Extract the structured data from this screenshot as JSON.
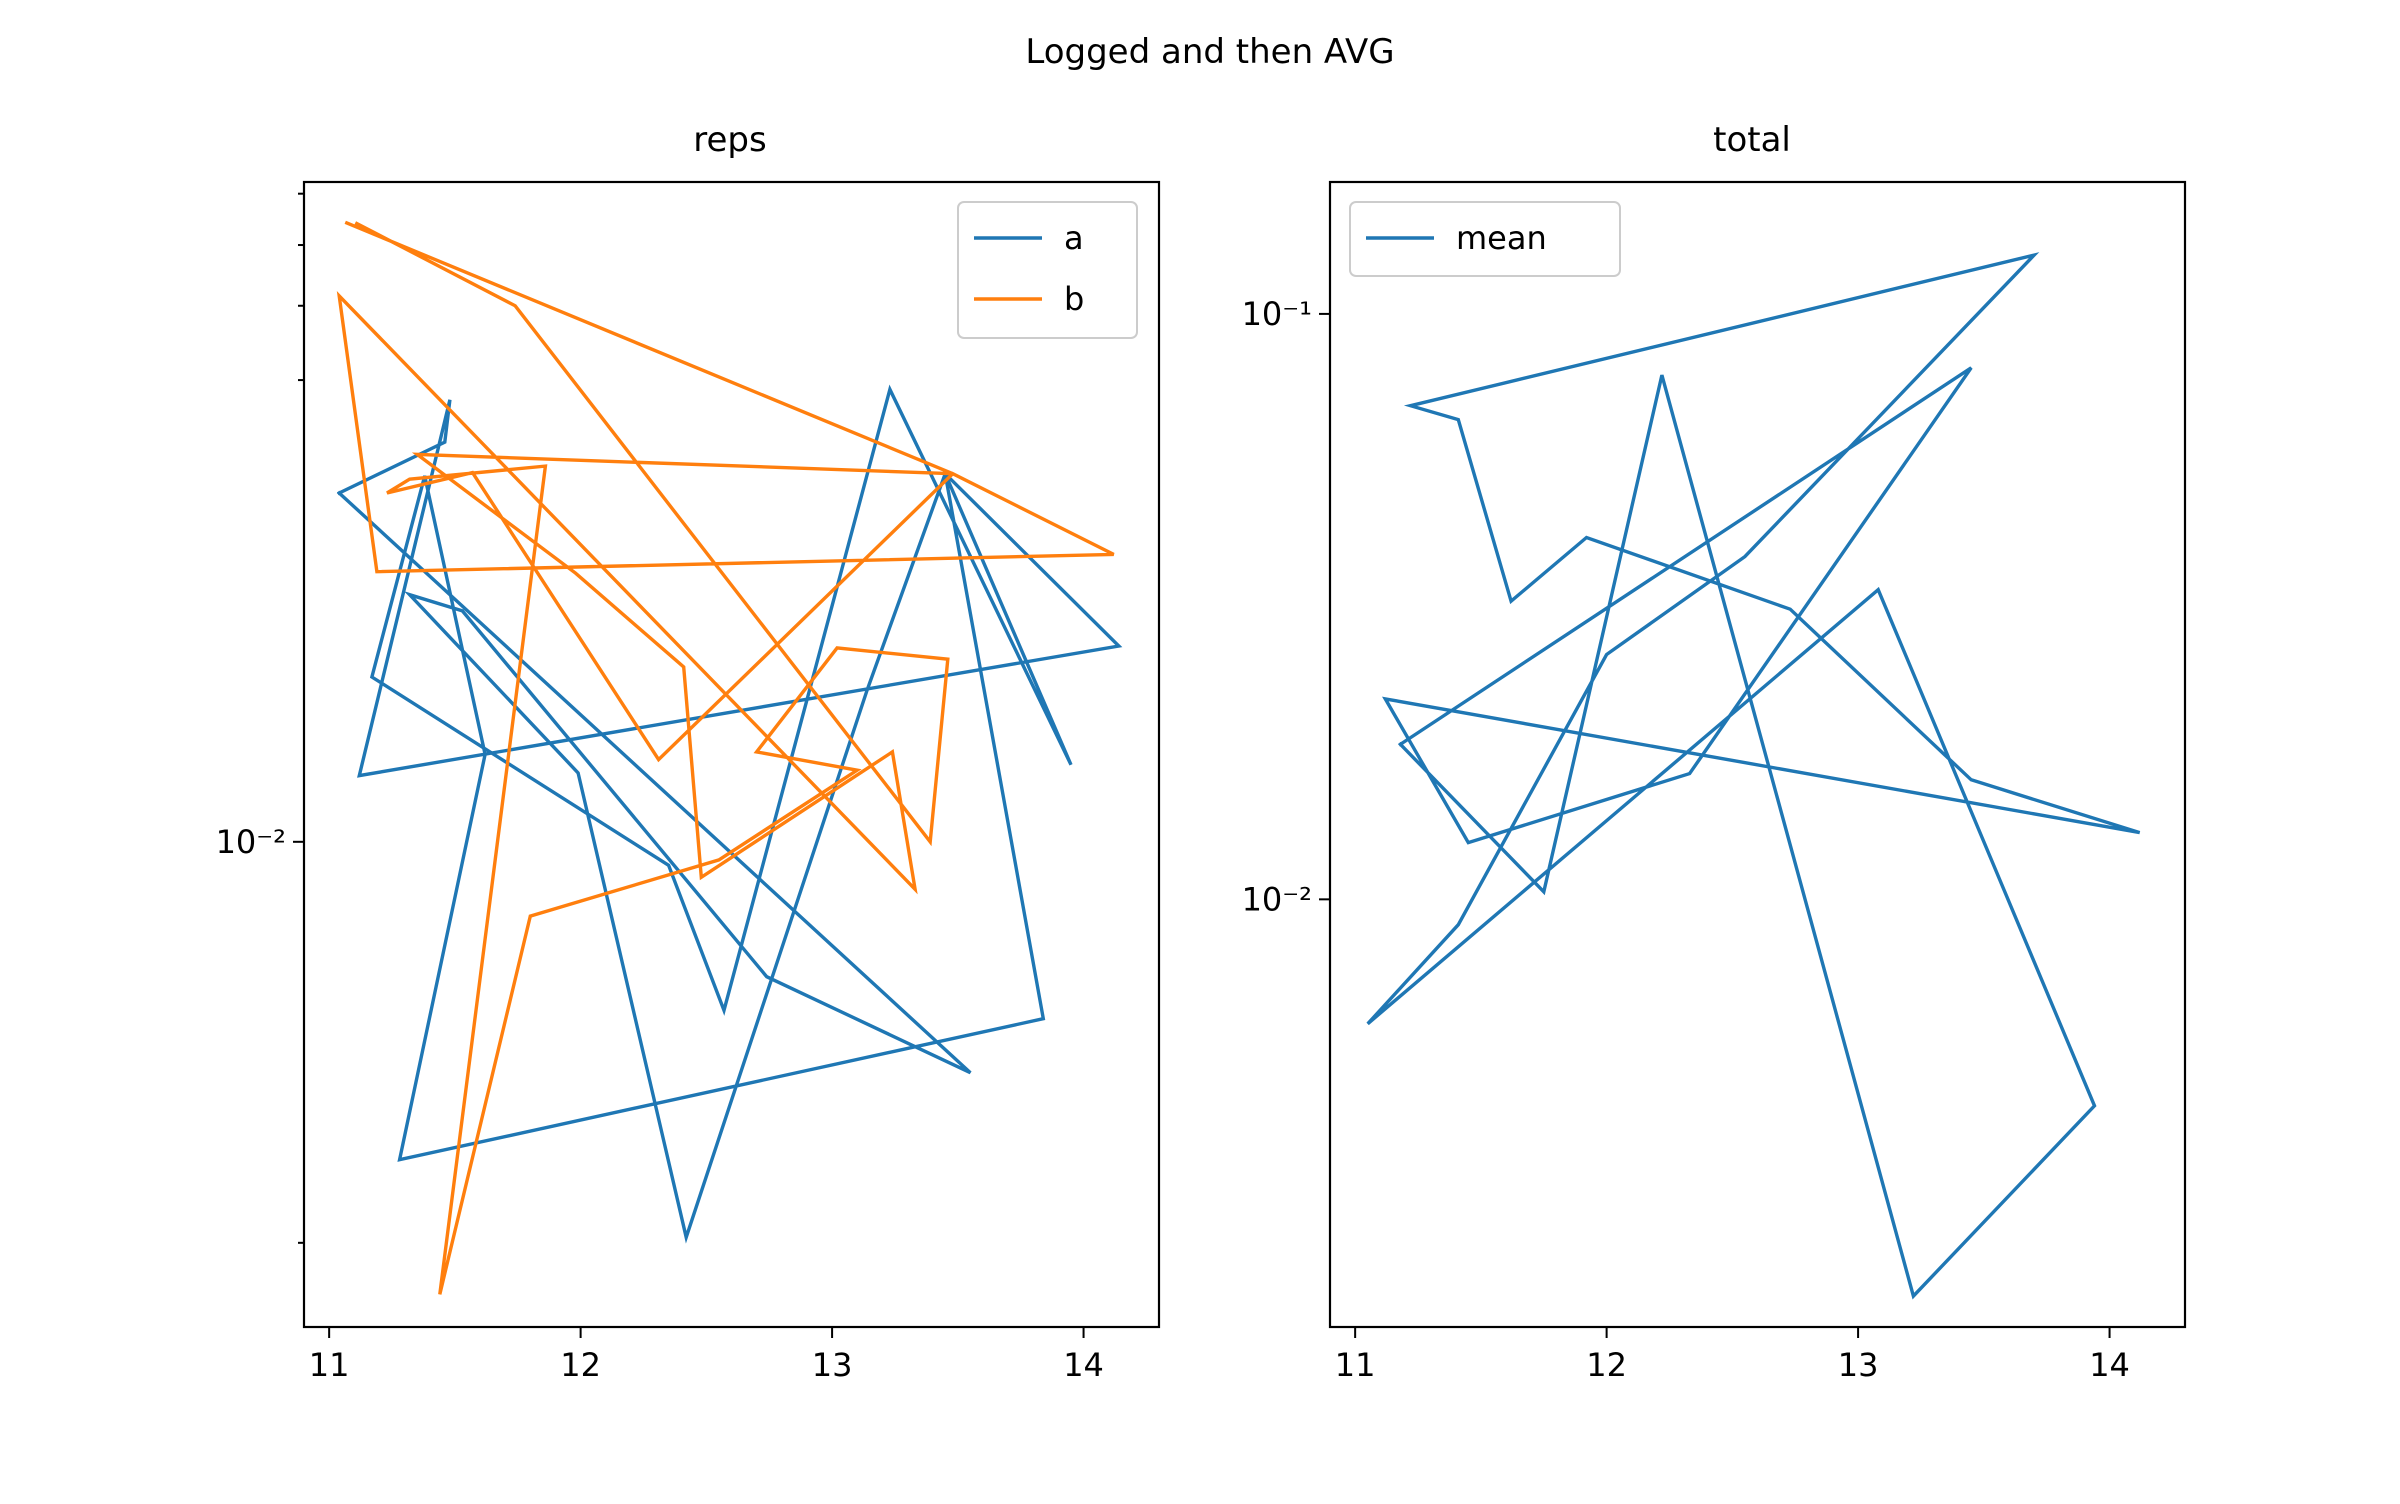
{
  "figure": {
    "title": "Logged and then AVG"
  },
  "colors": {
    "a": "#1f77b4",
    "b": "#ff7f0e",
    "mean": "#1f77b4"
  },
  "chart_data": [
    {
      "type": "line",
      "title": "reps",
      "xlabel": "",
      "ylabel": "",
      "yscale": "log",
      "xlim": [
        10.9,
        14.3
      ],
      "ylim": [
        0.00233,
        0.0725
      ],
      "xticks": [
        11,
        12,
        13,
        14
      ],
      "xtick_labels": [
        "11",
        "12",
        "13",
        "14"
      ],
      "yticks_major": [
        0.01
      ],
      "ytick_labels": [
        "10⁻²"
      ],
      "yticks_minor": [
        0.003,
        0.04,
        0.05,
        0.06,
        0.07
      ],
      "grid": false,
      "legend_position": "top-right",
      "series": [
        {
          "name": "a",
          "color": "#1f77b4",
          "x": [
            11.04,
            11.46,
            11.48,
            11.12,
            14.14,
            13.45,
            13.84,
            11.28,
            11.62,
            11.38,
            11.17,
            12.35,
            12.57,
            13.23,
            13.95,
            13.45,
            13.14,
            12.42,
            11.99,
            11.32,
            11.53,
            12.74,
            13.55,
            11.04
          ],
          "y": [
            0.0285,
            0.0332,
            0.0377,
            0.0122,
            0.018,
            0.0302,
            0.00588,
            0.00385,
            0.013,
            0.03,
            0.0164,
            0.00932,
            0.00603,
            0.0389,
            0.0126,
            0.0302,
            0.0158,
            0.00305,
            0.0123,
            0.021,
            0.02,
            0.00667,
            0.005,
            0.0285
          ]
        },
        {
          "name": "b",
          "color": "#ff7f0e",
          "x": [
            11.07,
            13.48,
            11.35,
            11.98,
            12.41,
            12.48,
            13.24,
            13.33,
            11.04,
            11.19,
            14.12,
            13.48,
            12.31,
            11.57,
            11.23,
            11.32,
            11.86,
            11.44,
            11.8,
            12.55,
            13.1,
            12.7,
            13.02,
            13.46,
            13.39,
            11.74,
            11.11
          ],
          "y": [
            0.0641,
            0.0302,
            0.032,
            0.0224,
            0.0169,
            0.00899,
            0.0131,
            0.00867,
            0.0515,
            0.0225,
            0.0237,
            0.0302,
            0.0128,
            0.0303,
            0.0285,
            0.0297,
            0.0309,
            0.00257,
            0.008,
            0.00947,
            0.0124,
            0.0131,
            0.0179,
            0.0173,
            0.01,
            0.05,
            0.064
          ]
        }
      ]
    },
    {
      "type": "line",
      "title": "total",
      "xlabel": "",
      "ylabel": "",
      "yscale": "log",
      "xlim": [
        10.9,
        14.3
      ],
      "ylim": [
        0.00186,
        0.168
      ],
      "xticks": [
        11,
        12,
        13,
        14
      ],
      "xtick_labels": [
        "11",
        "12",
        "13",
        "14"
      ],
      "yticks_major": [
        0.01,
        0.1
      ],
      "ytick_labels": [
        "10⁻²",
        "10⁻¹"
      ],
      "grid": false,
      "legend_position": "top-left",
      "series": [
        {
          "name": "mean",
          "color": "#1f77b4",
          "x": [
            11.18,
            11.75,
            12.22,
            13.22,
            13.94,
            13.08,
            11.05,
            11.41,
            12.0,
            12.55,
            13.7,
            11.22,
            11.41,
            11.62,
            11.92,
            12.73,
            13.45,
            14.12,
            11.12,
            11.45,
            12.33,
            13.45,
            11.18
          ],
          "y": [
            0.0184,
            0.0103,
            0.0786,
            0.0021,
            0.00444,
            0.0338,
            0.00613,
            0.00905,
            0.0262,
            0.0385,
            0.126,
            0.0697,
            0.066,
            0.0323,
            0.0415,
            0.0313,
            0.016,
            0.013,
            0.022,
            0.0125,
            0.0164,
            0.0809,
            0.0184
          ]
        }
      ]
    }
  ]
}
